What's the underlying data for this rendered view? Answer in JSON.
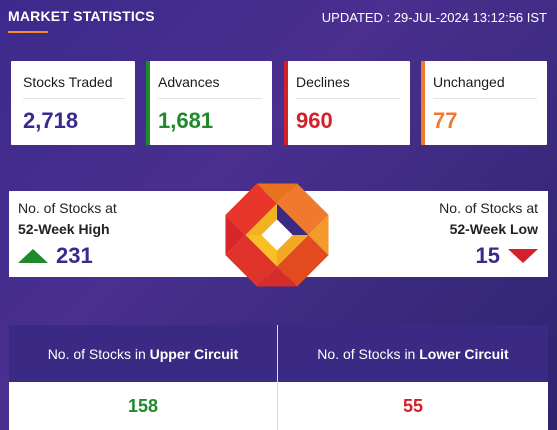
{
  "header": {
    "title": "MARKET STATISTICS",
    "updated": "UPDATED : 29-JUL-2024 13:12:56 IST"
  },
  "stats": [
    {
      "label": "Stocks Traded",
      "value": "2,718",
      "color": "#3b2a8c",
      "bar": ""
    },
    {
      "label": "Advances",
      "value": "1,681",
      "color": "#1f8a2a",
      "bar": "#1f8a2a"
    },
    {
      "label": "Declines",
      "value": "960",
      "color": "#d4202a",
      "bar": "#d4202a"
    },
    {
      "label": "Unchanged",
      "value": "77",
      "color": "#ef7a2e",
      "bar": "#ef7a2e"
    }
  ],
  "week52": {
    "high": {
      "line1": "No. of Stocks at",
      "line2": "52-Week High",
      "value": "231"
    },
    "low": {
      "line1": "No. of Stocks at",
      "line2": "52-Week Low",
      "value": "15"
    }
  },
  "circuits": {
    "upper": {
      "prefix": "No. of Stocks in ",
      "bold": "Upper Circuit",
      "value": "158",
      "color": "#1f8a2a"
    },
    "lower": {
      "prefix": "No. of Stocks in ",
      "bold": "Lower Circuit",
      "value": "55",
      "color": "#d4202a"
    }
  },
  "icons": {
    "high_arrow": "triangle-up-icon",
    "low_arrow": "triangle-down-icon",
    "logo": "nse-logo"
  }
}
